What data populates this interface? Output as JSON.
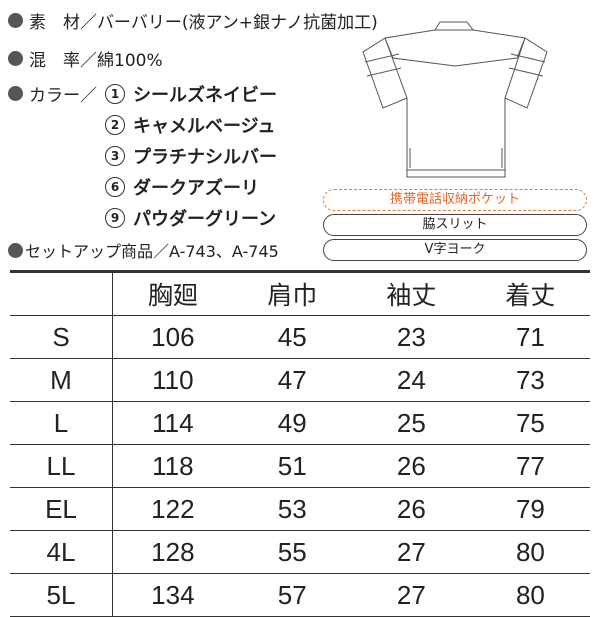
{
  "specs": {
    "material_label": "素　材／バーバリー(液アン+銀ナノ抗菌加工)",
    "blend_label": "混　率／綿100%",
    "color_label": "カラー／",
    "colors": [
      {
        "no": "1",
        "name": "シールズネイビー"
      },
      {
        "no": "2",
        "name": "キャメルベージュ"
      },
      {
        "no": "3",
        "name": "プラチナシルバー"
      },
      {
        "no": "6",
        "name": "ダークアズーリ"
      },
      {
        "no": "9",
        "name": "パウダーグリーン"
      }
    ],
    "setup_label": "セットアップ商品／A-743、A-745"
  },
  "features": [
    "携帯電話収納ポケット",
    "脇スリット",
    "V字ヨーク"
  ],
  "accent_color": "#e0672a",
  "table": {
    "headers": [
      "",
      "胸廻",
      "肩巾",
      "袖丈",
      "着丈"
    ],
    "rows": [
      [
        "S",
        "106",
        "45",
        "23",
        "71"
      ],
      [
        "M",
        "110",
        "47",
        "24",
        "73"
      ],
      [
        "L",
        "114",
        "49",
        "25",
        "75"
      ],
      [
        "LL",
        "118",
        "51",
        "26",
        "77"
      ],
      [
        "EL",
        "122",
        "53",
        "26",
        "79"
      ],
      [
        "4L",
        "128",
        "55",
        "27",
        "80"
      ],
      [
        "5L",
        "134",
        "57",
        "27",
        "80"
      ]
    ]
  }
}
